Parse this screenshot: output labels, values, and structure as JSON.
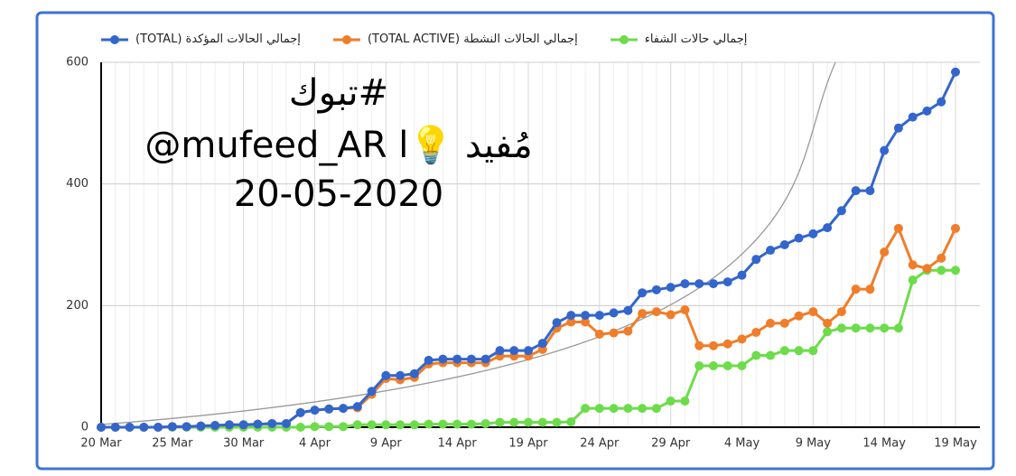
{
  "chart_data": {
    "type": "line",
    "annotations": [
      "#تبوك",
      "@mufeed_AR l💡 مُفيد",
      "20-05-2020"
    ],
    "categories": [
      "20 Mar",
      null,
      null,
      null,
      null,
      "25 Mar",
      null,
      null,
      null,
      null,
      "30 Mar",
      null,
      null,
      null,
      null,
      "4 Apr",
      null,
      null,
      null,
      null,
      "9 Apr",
      null,
      null,
      null,
      null,
      "14 Apr",
      null,
      null,
      null,
      null,
      "19 Apr",
      null,
      null,
      null,
      null,
      "24 Apr",
      null,
      null,
      null,
      null,
      "29 Apr",
      null,
      null,
      null,
      null,
      "4 May",
      null,
      null,
      null,
      null,
      "9 May",
      null,
      null,
      null,
      null,
      "14 May",
      null,
      null,
      null,
      null,
      "19 May"
    ],
    "series": [
      {
        "name": "إجمالي الحالات المؤكدة (TOTAL)",
        "color": "#3366cc",
        "values": [
          0,
          0,
          0,
          0,
          0,
          1,
          1,
          2,
          3,
          4,
          4,
          5,
          6,
          6,
          24,
          28,
          30,
          31,
          34,
          59,
          85,
          85,
          88,
          110,
          112,
          112,
          112,
          112,
          126,
          126,
          126,
          138,
          172,
          184,
          184,
          184,
          188,
          192,
          221,
          226,
          230,
          236,
          236,
          236,
          239,
          250,
          276,
          291,
          300,
          311,
          318,
          328,
          356,
          389,
          389,
          455,
          492,
          510,
          520,
          535,
          584
        ]
      },
      {
        "name": "إجمالي الحالات النشطة (TOTAL ACTIVE)",
        "color": "#f07d2a",
        "values": [
          0,
          0,
          0,
          0,
          0,
          1,
          1,
          2,
          3,
          4,
          4,
          5,
          6,
          6,
          24,
          28,
          30,
          31,
          32,
          54,
          80,
          78,
          82,
          104,
          106,
          106,
          106,
          106,
          117,
          117,
          117,
          128,
          163,
          173,
          173,
          153,
          155,
          158,
          187,
          190,
          185,
          193,
          134,
          134,
          137,
          145,
          156,
          171,
          171,
          183,
          190,
          171,
          190,
          227,
          227,
          288,
          327,
          267,
          261,
          278,
          327
        ]
      },
      {
        "name": "إجمالي حالات الشفاء",
        "color": "#6ddc4a",
        "values": [
          0,
          0,
          0,
          0,
          0,
          0,
          0,
          0,
          0,
          0,
          0,
          0,
          0,
          0,
          0,
          1,
          1,
          1,
          4,
          4,
          4,
          4,
          4,
          5,
          5,
          5,
          5,
          6,
          8,
          8,
          8,
          8,
          8,
          9,
          31,
          31,
          31,
          31,
          31,
          31,
          43,
          43,
          101,
          101,
          101,
          101,
          118,
          118,
          126,
          126,
          126,
          157,
          163,
          163,
          163,
          163,
          163,
          242,
          258,
          258,
          258
        ]
      }
    ],
    "ylim": [
      0,
      600
    ],
    "yticks": [
      0,
      200,
      400,
      600
    ],
    "grid": true
  }
}
